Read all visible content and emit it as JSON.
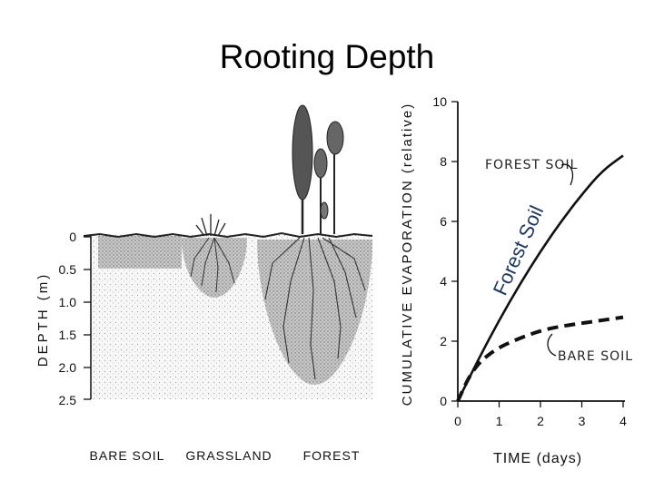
{
  "slide": {
    "title": "Rooting Depth"
  },
  "left_diagram": {
    "depth_axis_label": "DEPTH (m)",
    "depth_ticks": [
      "0",
      "0.5",
      "1.0",
      "1.5",
      "2.0",
      "2.5"
    ],
    "ecosystems": [
      "BARE SOIL",
      "GRASSLAND",
      "FOREST"
    ]
  },
  "annotation": {
    "text": "Forest Soil",
    "color": "#1f3a60"
  },
  "chart_data": {
    "type": "line",
    "xlabel": "TIME (days)",
    "ylabel": "CUMULATIVE EVAPORATION (relative)",
    "xlim": [
      0,
      4
    ],
    "ylim": [
      0,
      10
    ],
    "x_ticks": [
      "0",
      "1",
      "2",
      "3",
      "4"
    ],
    "y_ticks": [
      "0",
      "2",
      "4",
      "6",
      "8",
      "10"
    ],
    "series": [
      {
        "name": "FOREST SOIL",
        "style": "solid",
        "x": [
          0,
          0.5,
          1.0,
          1.5,
          2.0,
          2.5,
          3.0,
          3.5,
          4.0
        ],
        "y": [
          0,
          1.4,
          2.7,
          3.9,
          5.0,
          6.0,
          6.9,
          7.7,
          8.2
        ]
      },
      {
        "name": "BARE SOIL",
        "style": "dashed",
        "x": [
          0,
          0.3,
          0.6,
          1.0,
          1.5,
          2.0,
          2.5,
          3.0,
          3.5,
          4.0
        ],
        "y": [
          0,
          0.9,
          1.4,
          1.8,
          2.1,
          2.35,
          2.5,
          2.6,
          2.7,
          2.8
        ]
      }
    ]
  }
}
